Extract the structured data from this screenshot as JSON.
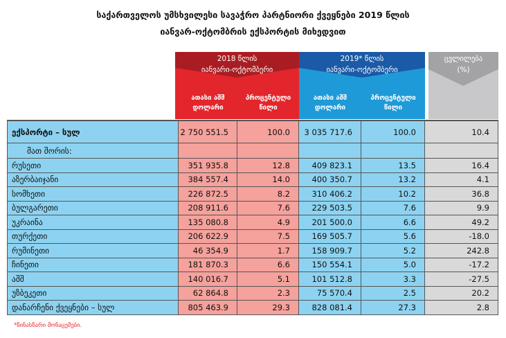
{
  "header": {
    "title_line1": "საქართველოს უმსხვილესი სავაჭრო პარტნიორი ქვეყნები 2019 წლის",
    "title_line2": "იანვარ-ოქტომბრის ექსპორტის მიხედვით"
  },
  "table": {
    "groups": [
      {
        "line1": "2018 წლის",
        "line2": "იანვარი-ოქტომბერი"
      },
      {
        "line1": "2019* წლის",
        "line2": "იანვარი-ოქტომბერი"
      },
      {
        "line1": "ცვლილება",
        "line2": "(%)"
      }
    ],
    "subheaders": [
      "ათასი აშშ დოლარი",
      "პროცენტული წილი",
      "ათასი აშშ დოლარი",
      "პროცენტული წილი"
    ],
    "total": [
      "ექსპორტი – სულ",
      "2 750 551.5",
      "100.0",
      "3 035 717.6",
      "100.0",
      "10.4"
    ],
    "among": "მათ შორის:",
    "rows": [
      [
        "რუსეთი",
        "351 935.8",
        "12.8",
        "409 823.1",
        "13.5",
        "16.4"
      ],
      [
        "აზერბაიჯანი",
        "384 557.4",
        "14.0",
        "400 350.7",
        "13.2",
        "4.1"
      ],
      [
        "სომხეთი",
        "226 872.5",
        "8.2",
        "310 406.2",
        "10.2",
        "36.8"
      ],
      [
        "ბულგარეთი",
        "208 911.6",
        "7.6",
        "229 503.5",
        "7.6",
        "9.9"
      ],
      [
        "უკრაინა",
        "135 080.8",
        "4.9",
        "201 500.0",
        "6.6",
        "49.2"
      ],
      [
        "თურქეთი",
        "206 622.9",
        "7.5",
        "169 505.7",
        "5.6",
        "-18.0"
      ],
      [
        "რუმინეთი",
        "46 354.9",
        "1.7",
        "158 909.7",
        "5.2",
        "242.8"
      ],
      [
        "ჩინეთი",
        "181 870.3",
        "6.6",
        "150 554.1",
        "5.0",
        "-17.2"
      ],
      [
        "აშშ",
        "140 016.7",
        "5.1",
        "101 512.8",
        "3.3",
        "-27.5"
      ],
      [
        "უზბეკეთი",
        "62 864.8",
        "2.3",
        "75 570.4",
        "2.5",
        "20.2"
      ],
      [
        "დანარჩენი ქვეყნები – სულ",
        "805 463.9",
        "29.3",
        "828 081.4",
        "27.3",
        "2.8"
      ]
    ]
  },
  "footnote": "*წინასწარი მონაცემები."
}
